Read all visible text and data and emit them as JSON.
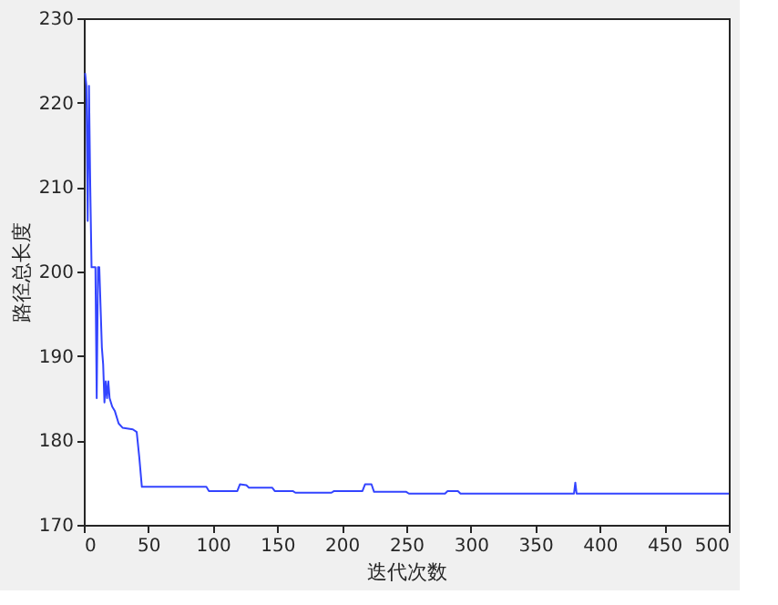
{
  "chart_data": {
    "type": "line",
    "xlabel": "迭代次数",
    "ylabel": "路径总长度",
    "x": [
      1,
      2,
      3,
      4,
      5,
      6,
      9,
      10,
      11,
      12,
      14,
      15,
      16,
      17,
      18,
      19,
      20,
      22,
      24,
      27,
      30,
      38,
      41,
      43,
      45,
      95,
      97,
      119,
      121,
      126,
      128,
      146,
      148,
      162,
      164,
      192,
      194,
      216,
      218,
      223,
      225,
      250,
      252,
      280,
      282,
      290,
      292,
      380,
      381,
      382,
      500
    ],
    "series": [
      {
        "color": "#3344ff",
        "values": [
          223.5,
          222,
          206,
          222,
          210,
          200.5,
          200.5,
          185,
          200.5,
          200.5,
          191,
          189,
          184.5,
          187,
          185,
          187,
          185,
          184,
          183.5,
          182,
          181.5,
          181.3,
          181,
          178,
          174.5,
          174.5,
          174,
          174,
          174.8,
          174.7,
          174.4,
          174.4,
          174,
          174,
          173.8,
          173.8,
          174,
          174,
          174.8,
          174.8,
          173.9,
          173.9,
          173.7,
          173.7,
          174,
          174,
          173.7,
          173.7,
          175,
          173.7,
          173.7
        ]
      }
    ],
    "xlim": [
      0,
      500
    ],
    "ylim": [
      170,
      230
    ],
    "xticks": [
      0,
      50,
      100,
      150,
      200,
      250,
      300,
      350,
      400,
      450,
      500
    ],
    "yticks": [
      170,
      180,
      190,
      200,
      210,
      220,
      230
    ],
    "grid": false,
    "legend": false,
    "marker": "none",
    "line_style": "solid"
  }
}
